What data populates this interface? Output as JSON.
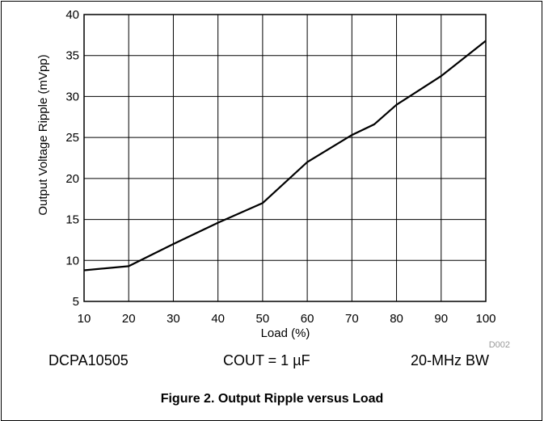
{
  "chart_data": {
    "type": "line",
    "ylabel": "Output Voltage Ripple (mVpp)",
    "xlabel": "Load (%)",
    "xlim": [
      10,
      100
    ],
    "ylim": [
      5,
      40
    ],
    "x_ticks": [
      "10",
      "20",
      "30",
      "40",
      "50",
      "60",
      "70",
      "80",
      "90",
      "100"
    ],
    "y_ticks": [
      "5",
      "10",
      "15",
      "20",
      "25",
      "30",
      "35",
      "40"
    ],
    "grid": true,
    "series": [
      {
        "x": [
          10,
          20,
          30,
          40,
          50,
          60,
          70,
          75,
          80,
          90,
          100
        ],
        "y": [
          8.8,
          9.3,
          12.0,
          14.6,
          17.0,
          22.0,
          25.3,
          26.6,
          29.0,
          32.5,
          36.8
        ]
      }
    ],
    "annotation": "D002"
  },
  "conditions": {
    "device": "DCPA10505",
    "cout": "COUT = 1 µF",
    "bandwidth": "20-MHz BW"
  },
  "figure_title": "Figure 2. Output Ripple versus Load",
  "colors": {
    "line": "#000000",
    "grid": "#000000",
    "annotation": "#999999"
  }
}
